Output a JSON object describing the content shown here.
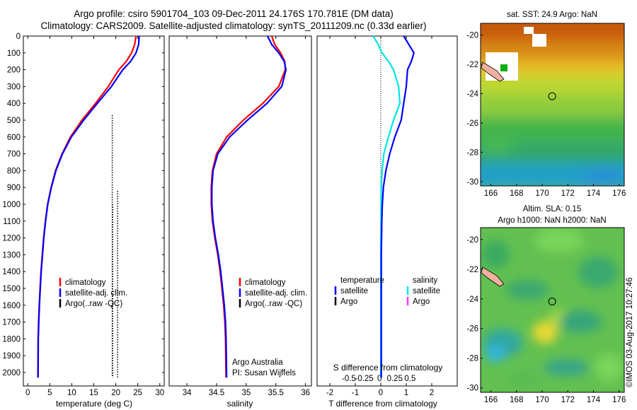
{
  "title_line1": "Argo profile: csiro 5901704_103 09-Dec-2011 24.176S 170.781E (DM data)",
  "title_line2": "Climatology: CARS2009. Satellite-adjusted climatology: synTS_20111209.nc (0.33d earlier)",
  "colors": {
    "climatology": "#ff0000",
    "satellite": "#0000ff",
    "argo": "#000000",
    "sal_satellite": "#00e5e5",
    "sal_argo": "#ff33ff"
  },
  "legend_profile": {
    "climatology": "climatology",
    "satellite": "satellite-adj. clim.",
    "argo": "Argo(..raw -QC)"
  },
  "legend_diff": {
    "temperature": "temperature",
    "salinity": "salinity",
    "satellite": "satellite",
    "argo": "Argo"
  },
  "credit": {
    "line1": "Argo Australia",
    "line2": "PI: Susan Wijffels"
  },
  "diff_label_top": "S difference from climatology",
  "footer_stamp": "©IMOS 03-Aug-2017 10:27:46",
  "chart_data": [
    {
      "type": "line",
      "xlabel": "temperature (deg C)",
      "xlim": [
        -1,
        31
      ],
      "ylim": [
        2080,
        0
      ],
      "xticks": [
        0,
        5,
        10,
        15,
        20,
        25,
        30
      ],
      "yticks": [
        0,
        100,
        200,
        300,
        400,
        500,
        600,
        700,
        800,
        900,
        1000,
        1100,
        1200,
        1300,
        1400,
        1500,
        1600,
        1700,
        1800,
        1900,
        2000
      ],
      "series": [
        {
          "name": "climatology",
          "x": [
            24.6,
            24.3,
            23.6,
            22.4,
            20.7,
            18.3,
            15.4,
            12.3,
            9.7,
            7.8,
            6.3,
            5.3,
            4.5,
            4.0,
            3.6,
            3.3,
            3.0,
            2.8,
            2.6,
            2.45,
            2.35,
            2.3
          ],
          "y": [
            0,
            50,
            100,
            150,
            200,
            300,
            400,
            500,
            600,
            700,
            800,
            900,
            1000,
            1100,
            1200,
            1300,
            1400,
            1500,
            1600,
            1700,
            1800,
            2030
          ]
        },
        {
          "name": "satellite-adj. clim.",
          "x": [
            25.3,
            25.2,
            24.6,
            23.4,
            21.6,
            19.0,
            15.8,
            12.7,
            9.9,
            7.9,
            6.4,
            5.35,
            4.55,
            4.05,
            3.65,
            3.35,
            3.05,
            2.85,
            2.65,
            2.5,
            2.4,
            2.35
          ],
          "y": [
            0,
            50,
            100,
            150,
            200,
            300,
            400,
            500,
            600,
            700,
            800,
            900,
            1000,
            1100,
            1200,
            1300,
            1400,
            1500,
            1600,
            1700,
            1800,
            2030
          ]
        },
        {
          "name": "Argo(..raw -QC)",
          "x": [
            19.2,
            19.3,
            19.5,
            20.4
          ],
          "y": [
            470,
            1000,
            2030,
            920
          ]
        }
      ]
    },
    {
      "type": "line",
      "xlabel": "salinity",
      "xlim": [
        33.7,
        36.1
      ],
      "ylim": [
        2080,
        0
      ],
      "xticks": [
        34,
        34.5,
        35,
        35.5,
        36
      ],
      "series": [
        {
          "name": "climatology",
          "x": [
            35.43,
            35.48,
            35.58,
            35.65,
            35.66,
            35.55,
            35.28,
            34.95,
            34.67,
            34.5,
            34.43,
            34.41,
            34.41,
            34.43,
            34.47,
            34.52,
            34.56,
            34.59,
            34.62,
            34.64,
            34.65,
            34.66
          ],
          "y": [
            0,
            50,
            100,
            150,
            200,
            300,
            400,
            500,
            600,
            700,
            800,
            900,
            1000,
            1100,
            1200,
            1300,
            1400,
            1500,
            1600,
            1700,
            1800,
            2030
          ]
        },
        {
          "name": "satellite-adj. clim.",
          "x": [
            35.36,
            35.43,
            35.55,
            35.64,
            35.67,
            35.6,
            35.35,
            35.02,
            34.72,
            34.52,
            34.44,
            34.42,
            34.42,
            34.44,
            34.48,
            34.53,
            34.57,
            34.6,
            34.63,
            34.65,
            34.66,
            34.67
          ],
          "y": [
            0,
            50,
            100,
            150,
            200,
            300,
            400,
            500,
            600,
            700,
            800,
            900,
            1000,
            1100,
            1200,
            1300,
            1400,
            1500,
            1600,
            1700,
            1800,
            2030
          ]
        }
      ]
    },
    {
      "type": "line",
      "xlabel": "T difference from climatology",
      "xlabel_top": "S difference from climatology",
      "xlim": [
        -2.5,
        3
      ],
      "ylim": [
        2080,
        0
      ],
      "xticks": [
        -2,
        -1,
        0,
        1,
        2
      ],
      "xticks_top": [
        -0.5,
        -0.25,
        0,
        0.25,
        0.5
      ],
      "series": [
        {
          "name": "temperature satellite",
          "x": [
            0.9,
            1.1,
            1.3,
            1.2,
            1.05,
            1.0,
            0.9,
            0.8,
            0.55,
            0.35,
            0.2,
            0.1,
            0.06,
            0.04,
            0.03,
            0.02,
            0.02,
            0.02,
            0.02,
            0.02,
            0.02,
            0.02
          ],
          "y": [
            0,
            50,
            100,
            150,
            200,
            300,
            400,
            500,
            600,
            700,
            800,
            900,
            1000,
            1100,
            1200,
            1300,
            1400,
            1500,
            1600,
            1700,
            1800,
            2030
          ]
        },
        {
          "name": "salinity satellite",
          "x": [
            -0.3,
            -0.1,
            0.05,
            0.3,
            0.5,
            0.7,
            0.75,
            0.5,
            0.3,
            0.12,
            0.05,
            0.02,
            0.01,
            0.01,
            0.0,
            0.0,
            0.0,
            0.0,
            0.0,
            0.0,
            0.0,
            0.0
          ],
          "y": [
            0,
            50,
            100,
            150,
            200,
            300,
            400,
            500,
            600,
            700,
            800,
            900,
            1000,
            1100,
            1200,
            1300,
            1400,
            1500,
            1600,
            1700,
            1800,
            2030
          ]
        }
      ]
    }
  ],
  "maps": [
    {
      "title_line1": "sat. SST: 24.9 Argo: NaN",
      "title_line2": "",
      "xticks": [
        166,
        168,
        170,
        172,
        174,
        176
      ],
      "yticks": [
        -20,
        -22,
        -24,
        -26,
        -28,
        -30
      ],
      "marker": {
        "lon": 170.781,
        "lat": -24.176
      },
      "colorscale": "sst"
    },
    {
      "title_line1": "Altim. SLA: 0.15",
      "title_line2": "Argo h1000: NaN h2000: NaN",
      "xticks": [
        166,
        168,
        170,
        172,
        174,
        176
      ],
      "yticks": [
        -20,
        -22,
        -24,
        -26,
        -28,
        -30
      ],
      "marker": {
        "lon": 170.781,
        "lat": -24.176
      },
      "colorscale": "sla"
    }
  ]
}
